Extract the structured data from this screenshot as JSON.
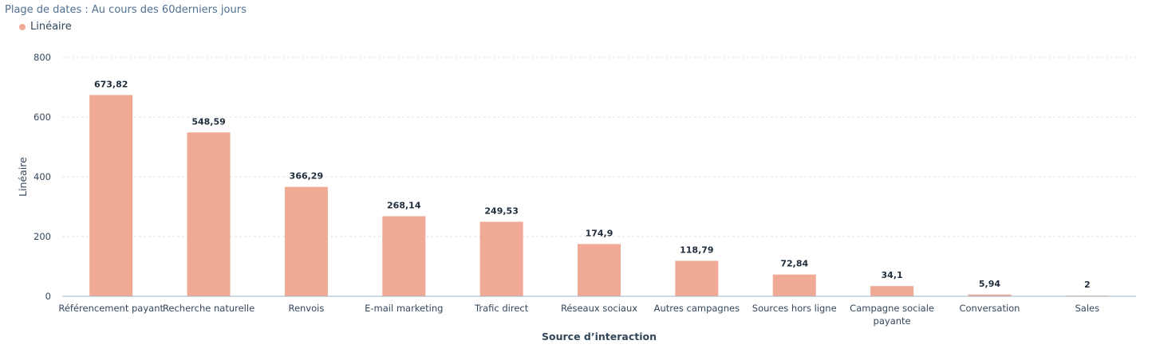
{
  "header": {
    "date_range": "Plage de dates : Au cours des 60derniers jours"
  },
  "colors": {
    "bar": "#f0a994",
    "grid": "#dfe3eb",
    "axis": "#9fb3c8"
  },
  "chart_data": {
    "type": "bar",
    "categories": [
      "Référencement payant",
      "Recherche naturelle",
      "Renvois",
      "E-mail marketing",
      "Trafic direct",
      "Réseaux sociaux",
      "Autres campagnes",
      "Sources hors ligne",
      "Campagne sociale payante",
      "Conversation",
      "Sales"
    ],
    "series": [
      {
        "name": "Linéaire",
        "values": [
          673.82,
          548.59,
          366.29,
          268.14,
          249.53,
          174.9,
          118.79,
          72.84,
          34.1,
          5.94,
          2
        ],
        "labels": [
          "673,82",
          "548,59",
          "366,29",
          "268,14",
          "249,53",
          "174,9",
          "118,79",
          "72,84",
          "34,1",
          "5,94",
          "2"
        ]
      }
    ],
    "xlabel": "Source d’interaction",
    "ylabel": "Linéaire",
    "ylim": [
      0,
      800
    ],
    "yticks": [
      0,
      200,
      400,
      600,
      800
    ],
    "grid": true,
    "legend": "top-left"
  }
}
